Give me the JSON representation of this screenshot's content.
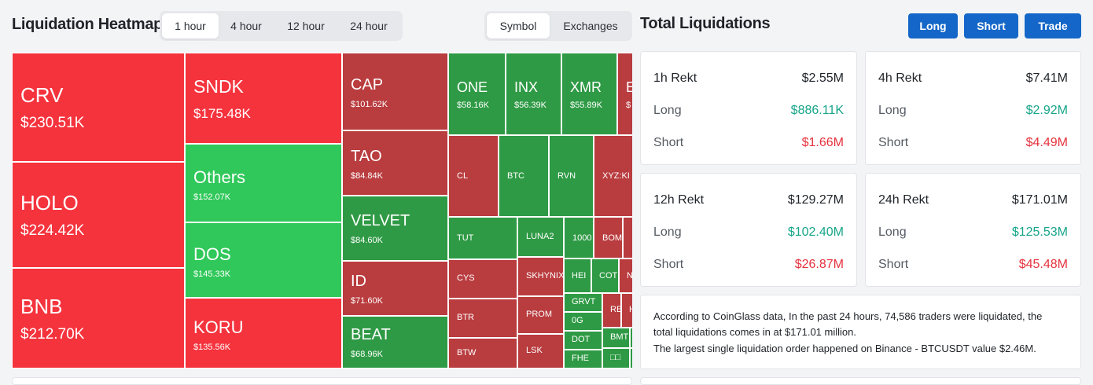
{
  "heatmap": {
    "title": "Liquidation Heatmap",
    "time_tabs": [
      {
        "label": "1 hour",
        "active": true
      },
      {
        "label": "4 hour",
        "active": false
      },
      {
        "label": "12 hour",
        "active": false
      },
      {
        "label": "24 hour",
        "active": false
      }
    ],
    "mode_tabs": [
      {
        "label": "Symbol",
        "active": true
      },
      {
        "label": "Exchanges",
        "active": false
      }
    ],
    "tiles": {
      "crv": {
        "symbol": "CRV",
        "value": "$230.51K"
      },
      "holo": {
        "symbol": "HOLO",
        "value": "$224.42K"
      },
      "bnb": {
        "symbol": "BNB",
        "value": "$212.70K"
      },
      "sndk": {
        "symbol": "SNDK",
        "value": "$175.48K"
      },
      "others": {
        "symbol": "Others",
        "value": "$152.07K"
      },
      "dos": {
        "symbol": "DOS",
        "value": "$145.33K"
      },
      "koru": {
        "symbol": "KORU",
        "value": "$135.56K"
      },
      "cap": {
        "symbol": "CAP",
        "value": "$101.62K"
      },
      "tao": {
        "symbol": "TAO",
        "value": "$84.84K"
      },
      "velvet": {
        "symbol": "VELVET",
        "value": "$84.60K"
      },
      "id": {
        "symbol": "ID",
        "value": "$71.60K"
      },
      "beat": {
        "symbol": "BEAT",
        "value": "$68.96K"
      },
      "one": {
        "symbol": "ONE",
        "value": "$58.16K"
      },
      "inx": {
        "symbol": "INX",
        "value": "$56.39K"
      },
      "xmr": {
        "symbol": "XMR",
        "value": "$55.89K"
      },
      "e": {
        "symbol": "E",
        "value": "$"
      },
      "cl": {
        "symbol": "CL"
      },
      "btc": {
        "symbol": "BTC"
      },
      "rvn": {
        "symbol": "RVN"
      },
      "xyz": {
        "symbol": "XYZ:KI"
      },
      "tut": {
        "symbol": "TUT"
      },
      "luna2": {
        "symbol": "LUNA2"
      },
      "t1000": {
        "symbol": "1000"
      },
      "bom": {
        "symbol": "BOM"
      },
      "cys": {
        "symbol": "CYS"
      },
      "skhynix": {
        "symbol": "SKHYNIX"
      },
      "hei": {
        "symbol": "HEI"
      },
      "cot": {
        "symbol": "COT"
      },
      "n": {
        "symbol": "N"
      },
      "btr": {
        "symbol": "BTR"
      },
      "prom": {
        "symbol": "PROM"
      },
      "grvt": {
        "symbol": "GRVT"
      },
      "re": {
        "symbol": "RE"
      },
      "h": {
        "symbol": "H"
      },
      "og": {
        "symbol": "0G"
      },
      "btw": {
        "symbol": "BTW"
      },
      "lsk": {
        "symbol": "LSK"
      },
      "dot": {
        "symbol": "DOT"
      },
      "bmt": {
        "symbol": "BMT"
      },
      "fhe": {
        "symbol": "FHE"
      },
      "box": {
        "symbol": "□□"
      }
    }
  },
  "total": {
    "title": "Total Liquidations",
    "buttons": {
      "long": "Long",
      "short": "Short",
      "trade": "Trade"
    },
    "cards": [
      {
        "title": "1h Rekt",
        "total": "$2.55M",
        "long_label": "Long",
        "long": "$886.11K",
        "short_label": "Short",
        "short": "$1.66M"
      },
      {
        "title": "4h Rekt",
        "total": "$7.41M",
        "long_label": "Long",
        "long": "$2.92M",
        "short_label": "Short",
        "short": "$4.49M"
      },
      {
        "title": "12h Rekt",
        "total": "$129.27M",
        "long_label": "Long",
        "long": "$102.40M",
        "short_label": "Short",
        "short": "$26.87M"
      },
      {
        "title": "24h Rekt",
        "total": "$171.01M",
        "long_label": "Long",
        "long": "$125.53M",
        "short_label": "Short",
        "short": "$45.48M"
      }
    ],
    "summary": {
      "line1": "According to CoinGlass data, In the past 24 hours, 74,586 traders were liquidated, the",
      "line2": "total liquidations comes in at $171.01 million.",
      "line3": "The largest single liquidation order happened on Binance - BTCUSDT value $2.46M."
    },
    "colors": {
      "accent": "#1467c8",
      "long": "#17a589",
      "short": "#e5323c"
    }
  }
}
